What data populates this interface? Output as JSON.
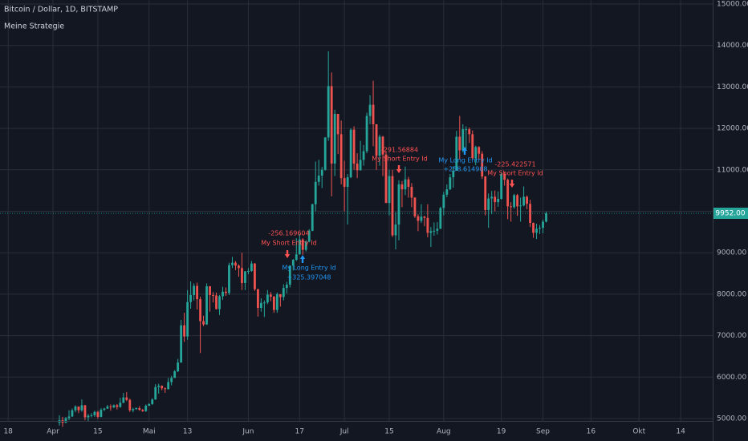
{
  "chart_data": {
    "type": "candlestick",
    "title": "Bitcoin / Dollar, 1D, BITSTAMP",
    "subtitle": "Meine Strategie",
    "up_color": "#26a69a",
    "down_color": "#ef5350",
    "grid": true,
    "ylim": [
      4942,
      15097
    ],
    "yticks": [
      {
        "value": 5000,
        "label": "5000.00"
      },
      {
        "value": 6000,
        "label": "6000.00"
      },
      {
        "value": 7000,
        "label": "7000.00"
      },
      {
        "value": 8000,
        "label": "8000.00"
      },
      {
        "value": 9000,
        "label": "9000.00"
      },
      {
        "value": 10000,
        "label": "10000.00"
      },
      {
        "value": 11000,
        "label": "11000.00"
      },
      {
        "value": 12000,
        "label": "12000.00"
      },
      {
        "value": 13000,
        "label": "13000.00"
      },
      {
        "value": 14000,
        "label": "14000.00"
      },
      {
        "value": 15000,
        "label": "15000.00"
      }
    ],
    "xlim": [
      -18.55,
      204
    ],
    "xticks": [
      {
        "value": -16,
        "label": "18"
      },
      {
        "value": -2,
        "label": "Apr"
      },
      {
        "value": 12,
        "label": "15"
      },
      {
        "value": 28,
        "label": "Mai"
      },
      {
        "value": 40,
        "label": "13"
      },
      {
        "value": 59,
        "label": "Jun"
      },
      {
        "value": 75,
        "label": "17"
      },
      {
        "value": 89,
        "label": "Jul"
      },
      {
        "value": 103,
        "label": "15"
      },
      {
        "value": 120,
        "label": "Aug"
      },
      {
        "value": 138,
        "label": "19"
      },
      {
        "value": 151,
        "label": "Sep"
      },
      {
        "value": 166,
        "label": "16"
      },
      {
        "value": 181,
        "label": "Okt"
      },
      {
        "value": 194,
        "label": "14"
      }
    ],
    "last_price": {
      "value": 9952,
      "label": "9952.00",
      "color": "#26a69a"
    },
    "candles": [
      [
        4900,
        5080,
        4830,
        4960
      ],
      [
        4960,
        5040,
        4800,
        4900
      ],
      [
        4900,
        5040,
        4890,
        5010
      ],
      [
        5010,
        5200,
        4960,
        5050
      ],
      [
        5050,
        5240,
        5040,
        5200
      ],
      [
        5200,
        5320,
        5150,
        5290
      ],
      [
        5290,
        5290,
        5130,
        5200
      ],
      [
        5200,
        5460,
        5160,
        5320
      ],
      [
        5320,
        5330,
        4960,
        5030
      ],
      [
        5030,
        5110,
        4930,
        5070
      ],
      [
        5070,
        5130,
        5030,
        5080
      ],
      [
        5080,
        5190,
        5040,
        5160
      ],
      [
        5160,
        5190,
        5000,
        5040
      ],
      [
        5040,
        5250,
        5030,
        5210
      ],
      [
        5210,
        5260,
        5180,
        5240
      ],
      [
        5240,
        5330,
        5230,
        5290
      ],
      [
        5290,
        5340,
        5190,
        5270
      ],
      [
        5270,
        5340,
        5250,
        5320
      ],
      [
        5320,
        5350,
        5220,
        5280
      ],
      [
        5280,
        5500,
        5260,
        5380
      ],
      [
        5380,
        5620,
        5370,
        5510
      ],
      [
        5510,
        5640,
        5420,
        5450
      ],
      [
        5450,
        5480,
        5160,
        5200
      ],
      [
        5200,
        5260,
        5150,
        5230
      ],
      [
        5230,
        5270,
        5210,
        5250
      ],
      [
        5250,
        5300,
        5190,
        5210
      ],
      [
        5210,
        5230,
        5160,
        5180
      ],
      [
        5180,
        5340,
        5160,
        5310
      ],
      [
        5310,
        5370,
        5300,
        5350
      ],
      [
        5350,
        5490,
        5330,
        5460
      ],
      [
        5460,
        5830,
        5450,
        5760
      ],
      [
        5760,
        5840,
        5600,
        5790
      ],
      [
        5790,
        5800,
        5680,
        5730
      ],
      [
        5730,
        5750,
        5620,
        5710
      ],
      [
        5710,
        5980,
        5700,
        5880
      ],
      [
        5880,
        6030,
        5800,
        5980
      ],
      [
        5980,
        6170,
        5980,
        6140
      ],
      [
        6140,
        6440,
        6120,
        6350
      ],
      [
        6350,
        7380,
        6350,
        7250
      ],
      [
        7250,
        7550,
        6850,
        6980
      ],
      [
        6980,
        8100,
        6900,
        7810
      ],
      [
        7810,
        8310,
        7650,
        7980
      ],
      [
        7980,
        8260,
        7850,
        8200
      ],
      [
        8200,
        8280,
        7630,
        7880
      ],
      [
        7880,
        7940,
        6580,
        7350
      ],
      [
        7350,
        7480,
        7230,
        7270
      ],
      [
        7270,
        8260,
        7260,
        8190
      ],
      [
        8190,
        8200,
        7580,
        7980
      ],
      [
        7980,
        8050,
        7800,
        7970
      ],
      [
        7970,
        8040,
        7630,
        7640
      ],
      [
        7640,
        7980,
        7500,
        7950
      ],
      [
        7950,
        8180,
        7860,
        8060
      ],
      [
        8060,
        8160,
        7960,
        8030
      ],
      [
        8030,
        8760,
        7980,
        8700
      ],
      [
        8700,
        8900,
        8630,
        8760
      ],
      [
        8760,
        8800,
        8580,
        8690
      ],
      [
        8690,
        8720,
        8420,
        8630
      ],
      [
        8630,
        9000,
        8100,
        8270
      ],
      [
        8270,
        8560,
        8100,
        8550
      ],
      [
        8550,
        8630,
        8480,
        8560
      ],
      [
        8560,
        8800,
        8540,
        8740
      ],
      [
        8740,
        8750,
        8080,
        8120
      ],
      [
        8120,
        8130,
        7460,
        7670
      ],
      [
        7670,
        7900,
        7580,
        7790
      ],
      [
        7790,
        7850,
        7450,
        7800
      ],
      [
        7800,
        8100,
        7760,
        7990
      ],
      [
        7990,
        8050,
        7830,
        7940
      ],
      [
        7940,
        7960,
        7550,
        7620
      ],
      [
        7620,
        8040,
        7550,
        8000
      ],
      [
        8000,
        8000,
        7700,
        7930
      ],
      [
        7930,
        8240,
        7850,
        8150
      ],
      [
        8150,
        8300,
        8020,
        8230
      ],
      [
        8230,
        8690,
        8160,
        8690
      ],
      [
        8690,
        8850,
        8570,
        8830
      ],
      [
        8830,
        9350,
        8800,
        8960
      ],
      [
        8960,
        9450,
        8960,
        9320
      ],
      [
        9320,
        9350,
        8950,
        9070
      ],
      [
        9070,
        9300,
        9030,
        9270
      ],
      [
        9270,
        9570,
        9250,
        9530
      ],
      [
        9530,
        10180,
        9520,
        10170
      ],
      [
        10170,
        11200,
        10000,
        10710
      ],
      [
        10710,
        11240,
        10620,
        10860
      ],
      [
        10860,
        11070,
        10560,
        11000
      ],
      [
        11000,
        11790,
        10980,
        11780
      ],
      [
        11780,
        13860,
        11700,
        13020
      ],
      [
        13020,
        13350,
        10360,
        11150
      ],
      [
        11150,
        12450,
        10850,
        12350
      ],
      [
        12350,
        12350,
        11380,
        11860
      ],
      [
        11860,
        12190,
        10650,
        10800
      ],
      [
        10800,
        11220,
        10000,
        10590
      ],
      [
        10590,
        10900,
        9680,
        10820
      ],
      [
        10820,
        12000,
        10800,
        11970
      ],
      [
        11970,
        12050,
        11000,
        11150
      ],
      [
        11150,
        11400,
        10800,
        10990
      ],
      [
        10990,
        11700,
        10980,
        11240
      ],
      [
        11240,
        11600,
        11100,
        11450
      ],
      [
        11450,
        12380,
        11400,
        12300
      ],
      [
        12300,
        12800,
        12100,
        12570
      ],
      [
        12570,
        13150,
        11570,
        12100
      ],
      [
        12100,
        12100,
        11000,
        11340
      ],
      [
        11340,
        11850,
        11100,
        11800
      ],
      [
        11800,
        11820,
        10850,
        11370
      ],
      [
        11370,
        11450,
        10250,
        10200
      ],
      [
        10200,
        11000,
        9900,
        10850
      ],
      [
        10850,
        11000,
        9380,
        9420
      ],
      [
        9420,
        9980,
        9080,
        9680
      ],
      [
        9680,
        10750,
        9300,
        10650
      ],
      [
        10650,
        10730,
        10100,
        10530
      ],
      [
        10530,
        11080,
        10390,
        10770
      ],
      [
        10770,
        10830,
        10330,
        10590
      ],
      [
        10590,
        10680,
        10100,
        10330
      ],
      [
        10330,
        10340,
        9840,
        9880
      ],
      [
        9880,
        9930,
        9520,
        9770
      ],
      [
        9770,
        10170,
        9720,
        9870
      ],
      [
        9870,
        9890,
        9640,
        9840
      ],
      [
        9840,
        10170,
        9370,
        9480
      ],
      [
        9480,
        9620,
        9140,
        9520
      ],
      [
        9520,
        9730,
        9410,
        9530
      ],
      [
        9530,
        9740,
        9440,
        9580
      ],
      [
        9580,
        10110,
        9570,
        10080
      ],
      [
        10080,
        10470,
        9900,
        10400
      ],
      [
        10400,
        10650,
        10340,
        10530
      ],
      [
        10530,
        10900,
        10510,
        10820
      ],
      [
        10820,
        11080,
        10570,
        10980
      ],
      [
        10980,
        11940,
        10980,
        11800
      ],
      [
        11800,
        12300,
        11250,
        11470
      ],
      [
        11470,
        12100,
        11420,
        11980
      ],
      [
        11980,
        12050,
        11500,
        11980
      ],
      [
        11980,
        12020,
        11650,
        11860
      ],
      [
        11860,
        11950,
        11250,
        11280
      ],
      [
        11280,
        11580,
        11110,
        11550
      ],
      [
        11550,
        11570,
        11240,
        11390
      ],
      [
        11390,
        11450,
        10780,
        10840
      ],
      [
        10840,
        10850,
        9900,
        10030
      ],
      [
        10030,
        10430,
        9600,
        10310
      ],
      [
        10310,
        10490,
        9930,
        10350
      ],
      [
        10350,
        10500,
        10000,
        10220
      ],
      [
        10220,
        10480,
        10110,
        10300
      ],
      [
        10300,
        10940,
        10280,
        10900
      ],
      [
        10900,
        10950,
        10620,
        10760
      ],
      [
        10760,
        10790,
        9810,
        10120
      ],
      [
        10120,
        10220,
        9750,
        10100
      ],
      [
        10100,
        10420,
        10060,
        10390
      ],
      [
        10390,
        10420,
        9890,
        10120
      ],
      [
        10120,
        10330,
        9750,
        10140
      ],
      [
        10140,
        10600,
        10120,
        10350
      ],
      [
        10350,
        10380,
        10050,
        10180
      ],
      [
        10180,
        10280,
        9620,
        9720
      ],
      [
        9720,
        9730,
        9360,
        9480
      ],
      [
        9480,
        9700,
        9330,
        9580
      ],
      [
        9580,
        9670,
        9450,
        9600
      ],
      [
        9600,
        9800,
        9470,
        9750
      ],
      [
        9750,
        9990,
        9730,
        9952
      ]
    ],
    "signals": [
      {
        "kind": "short",
        "profit": "-256.169604",
        "label": "My Short Entry Id",
        "color": "#ff5252"
      },
      {
        "kind": "long",
        "profit": "+325.397048",
        "label": "My Long Entry Id",
        "color": "#2196f3"
      },
      {
        "kind": "short",
        "profit": "-291.56884",
        "label": "My Short Entry Id",
        "color": "#ff5252"
      },
      {
        "kind": "long",
        "profit": "+258.614908",
        "label": "My Long Entry Id",
        "color": "#2196f3"
      },
      {
        "kind": "short",
        "profit": "-225.422571",
        "label": "My Short Entry Id",
        "color": "#ff5252"
      }
    ]
  }
}
